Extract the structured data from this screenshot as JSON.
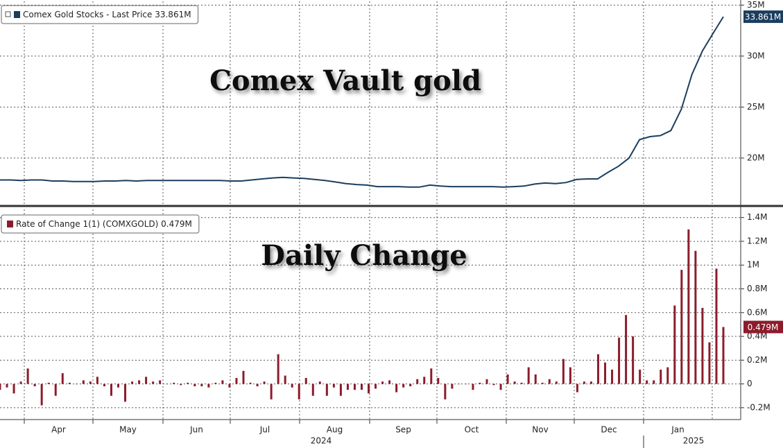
{
  "chart_data": [
    {
      "type": "line",
      "annotation": "Comex Vault gold",
      "last_label": "33.861M",
      "series": [
        {
          "name": "Comex Gold Stocks - Last Price 33.861M",
          "color": "#1b3d5e",
          "values": [
            17.85,
            17.85,
            17.8,
            17.85,
            17.85,
            17.75,
            17.75,
            17.7,
            17.7,
            17.7,
            17.75,
            17.75,
            17.8,
            17.75,
            17.8,
            17.8,
            17.8,
            17.8,
            17.8,
            17.8,
            17.8,
            17.8,
            17.75,
            17.75,
            17.85,
            17.95,
            18.05,
            18.1,
            18.05,
            18.0,
            17.9,
            17.8,
            17.65,
            17.5,
            17.4,
            17.35,
            17.2,
            17.2,
            17.2,
            17.15,
            17.15,
            17.35,
            17.25,
            17.2,
            17.2,
            17.2,
            17.2,
            17.2,
            17.15,
            17.2,
            17.25,
            17.45,
            17.55,
            17.5,
            17.6,
            17.9,
            17.95,
            17.95,
            18.6,
            19.2,
            20.0,
            21.8,
            22.1,
            22.2,
            22.7,
            24.8,
            28.2,
            30.5,
            32.2,
            33.861
          ]
        }
      ],
      "ylim": [
        15.3,
        35.5
      ],
      "yticks": [
        {
          "value": 20,
          "label": "20M"
        },
        {
          "value": 25,
          "label": "25M"
        },
        {
          "value": 30,
          "label": "30M"
        },
        {
          "value": 35,
          "label": "35M"
        }
      ],
      "grid": true
    },
    {
      "type": "bar",
      "annotation": "Daily Change",
      "last_label": "0.479M",
      "series": [
        {
          "name": "Rate of Change 1(1) (COMXGOLD) 0.479M",
          "color": "#8c1c2c",
          "values": [
            -0.05,
            -0.03,
            -0.08,
            0.02,
            0.13,
            -0.02,
            -0.18,
            0.01,
            -0.1,
            0.09,
            0.01,
            0.0,
            0.03,
            0.02,
            0.06,
            -0.02,
            -0.1,
            -0.03,
            -0.15,
            0.02,
            0.03,
            0.06,
            0.02,
            0.03,
            0.0,
            0.01,
            -0.01,
            0.01,
            -0.02,
            -0.02,
            -0.03,
            0.01,
            0.03,
            -0.03,
            0.05,
            0.11,
            0.01,
            -0.02,
            0.02,
            -0.13,
            0.25,
            0.07,
            -0.03,
            -0.13,
            0.05,
            -0.1,
            0.02,
            -0.1,
            -0.03,
            -0.1,
            -0.05,
            -0.05,
            -0.05,
            -0.08,
            -0.04,
            0.02,
            0.03,
            -0.07,
            -0.03,
            -0.02,
            0.04,
            0.06,
            0.13,
            0.05,
            -0.13,
            -0.04,
            0.0,
            0.0,
            -0.05,
            0.01,
            0.04,
            -0.01,
            -0.05,
            0.08,
            0.02,
            0.01,
            0.14,
            0.08,
            0.01,
            0.04,
            0.02,
            0.21,
            0.14,
            -0.07,
            0.02,
            0.02,
            0.25,
            0.18,
            0.12,
            0.39,
            0.58,
            0.4,
            0.12,
            0.03,
            0.03,
            0.12,
            0.14,
            0.66,
            0.96,
            1.3,
            1.12,
            0.64,
            0.35,
            0.97,
            0.479
          ]
        }
      ],
      "ylim": [
        -0.3,
        1.48
      ],
      "yticks": [
        {
          "value": -0.2,
          "label": "-0.2M"
        },
        0,
        {
          "value": 0.2,
          "label": "0.2M"
        },
        {
          "value": 0.4,
          "label": "0.4M"
        },
        {
          "value": 0.6,
          "label": "0.6M"
        },
        {
          "value": 0.8,
          "label": "0.8M"
        },
        {
          "value": 1,
          "label": "1M"
        },
        {
          "value": 1.2,
          "label": "1.2M"
        },
        {
          "value": 1.4,
          "label": "1.4M"
        }
      ],
      "grid": true,
      "months": [
        "Apr",
        "May",
        "Jun",
        "Jul",
        "Aug",
        "Sep",
        "Oct",
        "Nov",
        "Dec",
        "Jan"
      ],
      "years": [
        "2024",
        "2025"
      ]
    }
  ]
}
